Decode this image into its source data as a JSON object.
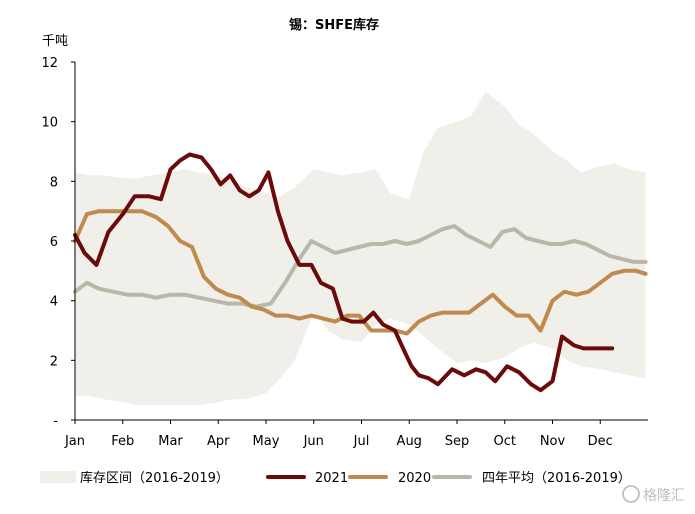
{
  "chart_data": {
    "type": "line",
    "title": "锡：SHFE库存",
    "unit": "千吨",
    "xlabel": "",
    "ylabel": "",
    "ylim": [
      0,
      12
    ],
    "yticks": [
      "-",
      "2",
      "4",
      "6",
      "8",
      "10",
      "12"
    ],
    "months": [
      "Jan",
      "Feb",
      "Mar",
      "Apr",
      "May",
      "Jun",
      "Jul",
      "Aug",
      "Sep",
      "Oct",
      "Nov",
      "Dec"
    ],
    "band": {
      "name": "库存区间（2016-2019）",
      "color": "#f0efea",
      "x": [
        0,
        0.3,
        0.6,
        1.0,
        1.3,
        1.6,
        2.0,
        2.3,
        2.6,
        3.0,
        3.3,
        3.6,
        4.0,
        4.3,
        4.6,
        5.0,
        5.3,
        5.6,
        6.0,
        6.3,
        6.6,
        7.0,
        7.3,
        7.6,
        8.0,
        8.3,
        8.6,
        9.0,
        9.3,
        9.6,
        10.0,
        10.3,
        10.6,
        11.0,
        11.3,
        11.6,
        11.95
      ],
      "upper": [
        8.3,
        8.2,
        8.2,
        8.1,
        8.1,
        8.2,
        8.3,
        8.4,
        8.3,
        8.2,
        8.0,
        7.8,
        7.6,
        7.5,
        7.8,
        8.4,
        8.3,
        8.2,
        8.3,
        8.4,
        7.6,
        7.4,
        9.0,
        9.8,
        10.0,
        10.2,
        11.0,
        10.5,
        9.9,
        9.6,
        9.0,
        8.7,
        8.3,
        8.5,
        8.6,
        8.4,
        8.3
      ],
      "lower": [
        0.8,
        0.8,
        0.7,
        0.6,
        0.5,
        0.5,
        0.5,
        0.5,
        0.5,
        0.6,
        0.7,
        0.7,
        0.9,
        1.4,
        2.0,
        3.6,
        3.0,
        2.7,
        2.6,
        3.2,
        3.4,
        3.2,
        2.8,
        2.4,
        1.9,
        2.0,
        1.9,
        2.1,
        2.4,
        2.6,
        2.4,
        2.0,
        1.8,
        1.7,
        1.6,
        1.5,
        1.4
      ]
    },
    "series": [
      {
        "name": "2021",
        "color": "#6b0a0a",
        "x": [
          0,
          0.2,
          0.45,
          0.7,
          1.0,
          1.25,
          1.55,
          1.8,
          2.0,
          2.2,
          2.4,
          2.65,
          2.85,
          3.05,
          3.25,
          3.45,
          3.65,
          3.85,
          4.05,
          4.25,
          4.45,
          4.7,
          4.95,
          5.15,
          5.4,
          5.6,
          5.8,
          6.05,
          6.25,
          6.45,
          6.7,
          6.9,
          7.05,
          7.2,
          7.4,
          7.6,
          7.9,
          8.15,
          8.4,
          8.6,
          8.8,
          9.05,
          9.3,
          9.55,
          9.75,
          10.0,
          10.2,
          10.45,
          10.65,
          10.85,
          11.05,
          11.25
        ],
        "y": [
          6.2,
          5.6,
          5.2,
          6.3,
          6.9,
          7.5,
          7.5,
          7.4,
          8.4,
          8.7,
          8.9,
          8.8,
          8.4,
          7.9,
          8.2,
          7.7,
          7.5,
          7.7,
          8.3,
          7.0,
          6.0,
          5.2,
          5.2,
          4.6,
          4.4,
          3.4,
          3.3,
          3.3,
          3.6,
          3.2,
          3.0,
          2.3,
          1.8,
          1.5,
          1.4,
          1.2,
          1.7,
          1.5,
          1.7,
          1.6,
          1.3,
          1.8,
          1.6,
          1.2,
          1.0,
          1.3,
          2.8,
          2.5,
          2.4,
          2.4,
          2.4,
          2.4
        ]
      },
      {
        "name": "2020",
        "color": "#c08a4e",
        "x": [
          0,
          0.25,
          0.5,
          0.8,
          1.1,
          1.4,
          1.7,
          1.95,
          2.2,
          2.45,
          2.7,
          2.95,
          3.2,
          3.45,
          3.7,
          3.95,
          4.2,
          4.45,
          4.7,
          4.95,
          5.2,
          5.45,
          5.7,
          5.95,
          6.2,
          6.45,
          6.7,
          6.95,
          7.2,
          7.45,
          7.7,
          8.0,
          8.25,
          8.5,
          8.75,
          9.0,
          9.25,
          9.5,
          9.75,
          10.0,
          10.25,
          10.5,
          10.75,
          11.0,
          11.25,
          11.5,
          11.75,
          11.95
        ],
        "y": [
          6.0,
          6.9,
          7.0,
          7.0,
          7.0,
          7.0,
          6.8,
          6.5,
          6.0,
          5.8,
          4.8,
          4.4,
          4.2,
          4.1,
          3.8,
          3.7,
          3.5,
          3.5,
          3.4,
          3.5,
          3.4,
          3.3,
          3.5,
          3.5,
          3.0,
          3.0,
          3.0,
          2.9,
          3.3,
          3.5,
          3.6,
          3.6,
          3.6,
          3.9,
          4.2,
          3.8,
          3.5,
          3.5,
          3.0,
          4.0,
          4.3,
          4.2,
          4.3,
          4.6,
          4.9,
          5.0,
          5.0,
          4.9
        ]
      },
      {
        "name": "四年平均（2016-2019）",
        "color": "#b8b8a8",
        "x": [
          0,
          0.25,
          0.5,
          0.8,
          1.1,
          1.4,
          1.7,
          2.0,
          2.3,
          2.6,
          2.9,
          3.2,
          3.5,
          3.8,
          4.1,
          4.4,
          4.7,
          4.95,
          5.2,
          5.45,
          5.7,
          5.95,
          6.2,
          6.45,
          6.7,
          6.95,
          7.2,
          7.45,
          7.7,
          7.95,
          8.2,
          8.45,
          8.7,
          8.95,
          9.2,
          9.45,
          9.7,
          9.95,
          10.2,
          10.45,
          10.7,
          10.95,
          11.2,
          11.45,
          11.7,
          11.95
        ],
        "y": [
          4.3,
          4.6,
          4.4,
          4.3,
          4.2,
          4.2,
          4.1,
          4.2,
          4.2,
          4.1,
          4.0,
          3.9,
          3.9,
          3.8,
          3.9,
          4.6,
          5.4,
          6.0,
          5.8,
          5.6,
          5.7,
          5.8,
          5.9,
          5.9,
          6.0,
          5.9,
          6.0,
          6.2,
          6.4,
          6.5,
          6.2,
          6.0,
          5.8,
          6.3,
          6.4,
          6.1,
          6.0,
          5.9,
          5.9,
          6.0,
          5.9,
          5.7,
          5.5,
          5.4,
          5.3,
          5.3
        ]
      }
    ]
  },
  "watermark": "格隆汇"
}
